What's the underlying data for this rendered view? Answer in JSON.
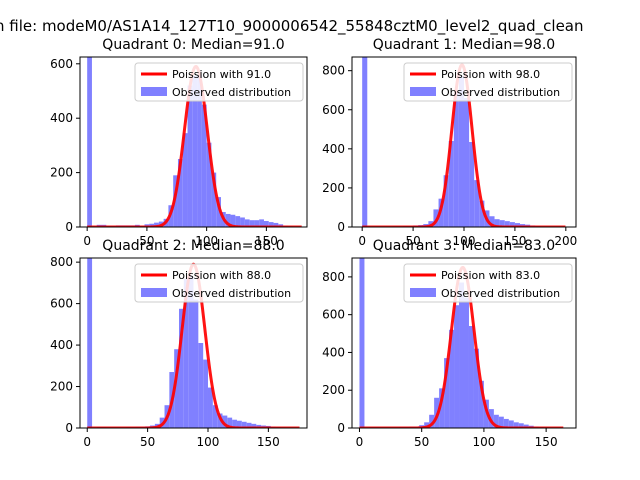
{
  "figure": {
    "suptitle": "n file: modeM0/AS1A14_127T10_9000006542_55848cztM0_level2_quad_clean"
  },
  "colors": {
    "histogram": "#8080ff",
    "poisson": "#ff0000",
    "legend_border": "#cccccc"
  },
  "chart_data": [
    {
      "type": "bar+line",
      "title": "Quadrant 0: Median=91.0",
      "legend": {
        "placement": "upper-right",
        "line_label": "Poission with 91.0",
        "hist_label": "Observed distribution"
      },
      "xlim": [
        -6,
        184
      ],
      "ylim": [
        0,
        625
      ],
      "xticks": [
        0,
        50,
        100,
        150
      ],
      "yticks": [
        0,
        200,
        400,
        600
      ],
      "poisson_mean": 91.0,
      "poisson_peak": 590,
      "hist": {
        "x": [
          0,
          8,
          16,
          24,
          32,
          40,
          44,
          48,
          52,
          56,
          60,
          64,
          68,
          72,
          76,
          80,
          84,
          88,
          92,
          96,
          100,
          104,
          108,
          112,
          116,
          120,
          124,
          128,
          132,
          136,
          140,
          144,
          148,
          152,
          156,
          160,
          164,
          168,
          172,
          176
        ],
        "width": [
          4,
          8,
          8,
          8,
          8,
          4,
          4,
          4,
          4,
          4,
          4,
          4,
          4,
          4,
          4,
          4,
          4,
          4,
          4,
          4,
          4,
          4,
          4,
          4,
          4,
          4,
          4,
          4,
          4,
          4,
          4,
          4,
          4,
          4,
          4,
          4,
          4,
          4,
          4,
          4
        ],
        "values": [
          625,
          8,
          5,
          6,
          6,
          8,
          5,
          10,
          12,
          16,
          20,
          30,
          80,
          190,
          250,
          345,
          520,
          555,
          560,
          450,
          310,
          200,
          110,
          55,
          48,
          45,
          40,
          35,
          28,
          25,
          25,
          28,
          22,
          18,
          15,
          10,
          5,
          3,
          2,
          0
        ]
      }
    },
    {
      "type": "bar+line",
      "title": "Quadrant 1: Median=98.0",
      "legend": {
        "placement": "upper-right",
        "line_label": "Poission with 98.0",
        "hist_label": "Observed distribution"
      },
      "xlim": [
        -10,
        210
      ],
      "ylim": [
        0,
        870
      ],
      "xticks": [
        0,
        50,
        100,
        150,
        200
      ],
      "yticks": [
        0,
        200,
        400,
        600,
        800
      ],
      "poisson_mean": 98.0,
      "poisson_peak": 830,
      "hist": {
        "x": [
          0,
          10,
          20,
          30,
          40,
          50,
          55,
          60,
          65,
          70,
          75,
          80,
          85,
          90,
          95,
          100,
          105,
          110,
          115,
          120,
          125,
          130,
          135,
          140,
          145,
          150,
          155,
          160,
          165,
          170,
          175,
          180,
          185,
          190,
          195
        ],
        "width": [
          5,
          10,
          10,
          10,
          10,
          5,
          5,
          5,
          5,
          5,
          5,
          5,
          5,
          5,
          5,
          5,
          5,
          5,
          5,
          5,
          5,
          5,
          5,
          5,
          5,
          5,
          5,
          5,
          5,
          5,
          5,
          5,
          5,
          5,
          5
        ],
        "values": [
          870,
          3,
          3,
          4,
          5,
          8,
          10,
          15,
          30,
          90,
          145,
          265,
          440,
          690,
          770,
          660,
          435,
          240,
          135,
          85,
          55,
          40,
          35,
          30,
          25,
          20,
          15,
          12,
          8,
          5,
          3,
          2,
          1,
          1,
          0
        ]
      }
    },
    {
      "type": "bar+line",
      "title": "Quadrant 2: Median=88.0",
      "legend": {
        "placement": "upper-right",
        "line_label": "Poission with 88.0",
        "hist_label": "Observed distribution"
      },
      "xlim": [
        -6,
        182
      ],
      "ylim": [
        0,
        820
      ],
      "xticks": [
        0,
        50,
        100,
        150
      ],
      "yticks": [
        0,
        200,
        400,
        600,
        800
      ],
      "poisson_mean": 88.0,
      "poisson_peak": 790,
      "hist": {
        "x": [
          0,
          8,
          16,
          24,
          32,
          40,
          48,
          52,
          56,
          60,
          64,
          68,
          72,
          76,
          80,
          84,
          88,
          92,
          96,
          100,
          104,
          108,
          112,
          116,
          120,
          124,
          128,
          132,
          136,
          140,
          144,
          148,
          152,
          156,
          160,
          164,
          168,
          172
        ],
        "width": [
          4,
          8,
          8,
          8,
          8,
          8,
          4,
          4,
          4,
          4,
          4,
          4,
          4,
          4,
          4,
          4,
          4,
          4,
          4,
          4,
          4,
          4,
          4,
          4,
          4,
          4,
          4,
          4,
          4,
          4,
          4,
          4,
          4,
          4,
          4,
          4,
          4,
          4
        ],
        "values": [
          820,
          5,
          4,
          4,
          5,
          6,
          8,
          12,
          20,
          50,
          110,
          270,
          380,
          575,
          720,
          730,
          620,
          410,
          330,
          195,
          110,
          70,
          60,
          50,
          40,
          35,
          30,
          25,
          20,
          15,
          12,
          10,
          7,
          5,
          3,
          2,
          1,
          0
        ]
      }
    },
    {
      "type": "bar+line",
      "title": "Quadrant 3: Median=83.0",
      "legend": {
        "placement": "upper-right",
        "line_label": "Poission with 83.0",
        "hist_label": "Observed distribution"
      },
      "xlim": [
        -6,
        174
      ],
      "ylim": [
        0,
        900
      ],
      "xticks": [
        0,
        50,
        100,
        150
      ],
      "yticks": [
        0,
        200,
        400,
        600,
        800
      ],
      "poisson_mean": 83.0,
      "poisson_peak": 850,
      "hist": {
        "x": [
          0,
          8,
          16,
          24,
          32,
          40,
          48,
          52,
          56,
          60,
          64,
          68,
          72,
          76,
          80,
          84,
          88,
          92,
          96,
          100,
          104,
          108,
          112,
          116,
          120,
          124,
          128,
          132,
          136,
          140,
          144,
          148,
          152,
          156,
          160
        ],
        "width": [
          4,
          8,
          8,
          8,
          8,
          8,
          4,
          4,
          4,
          4,
          4,
          4,
          4,
          4,
          4,
          4,
          4,
          4,
          4,
          4,
          4,
          4,
          4,
          4,
          4,
          4,
          4,
          4,
          4,
          4,
          4,
          4,
          4,
          4,
          4
        ],
        "values": [
          900,
          5,
          4,
          4,
          6,
          8,
          15,
          30,
          70,
          160,
          210,
          370,
          520,
          650,
          770,
          690,
          540,
          420,
          250,
          150,
          100,
          70,
          60,
          48,
          40,
          30,
          25,
          18,
          12,
          8,
          5,
          3,
          2,
          1,
          0
        ]
      }
    }
  ]
}
